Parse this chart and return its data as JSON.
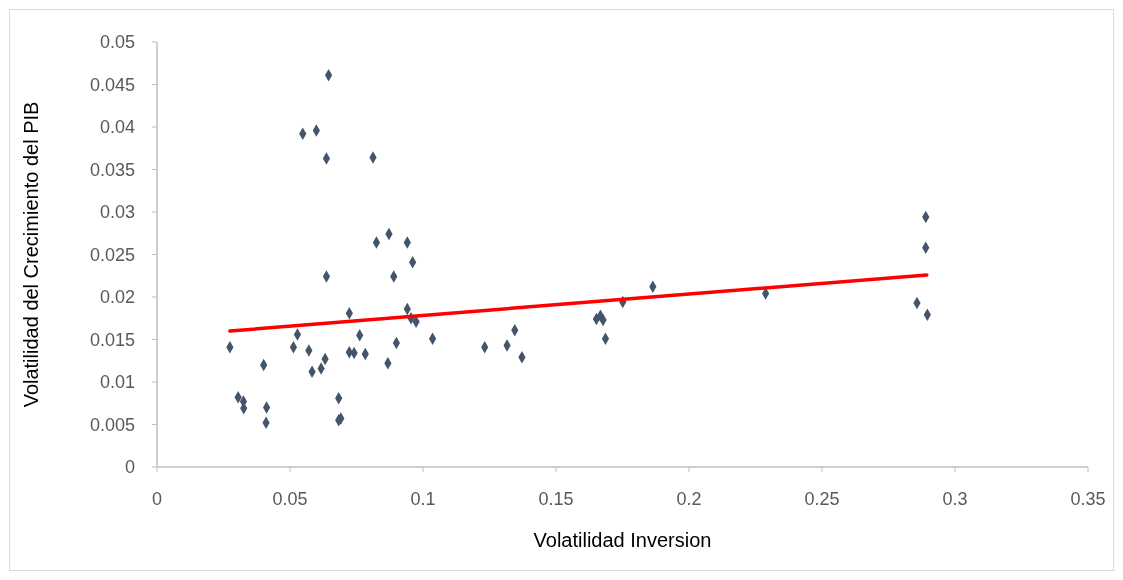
{
  "chart_data": {
    "type": "scatter",
    "xlabel": "Volatilidad Inversion",
    "ylabel": "Volatilidad del Crecimiento del PIB",
    "xlim": [
      0,
      0.35
    ],
    "xticks": [
      0,
      0.05,
      0.1,
      0.15,
      0.2,
      0.25,
      0.3,
      0.35
    ],
    "ylim": [
      0,
      0.05
    ],
    "yticks": [
      0,
      0.005,
      0.01,
      0.015,
      0.02,
      0.025,
      0.03,
      0.035,
      0.04,
      0.045,
      0.05
    ],
    "grid": false,
    "series": [
      {
        "marker": "diamond",
        "color": "#44546a",
        "x": [
          0.0645,
          0.0548,
          0.0599,
          0.0637,
          0.0812,
          0.0872,
          0.0825,
          0.0941,
          0.0961,
          0.0637,
          0.089,
          0.0723,
          0.0941,
          0.0955,
          0.0974,
          0.0528,
          0.0762,
          0.1036,
          0.0274,
          0.0513,
          0.0571,
          0.09,
          0.0723,
          0.0741,
          0.0783,
          0.0632,
          0.0401,
          0.0868,
          0.0617,
          0.0583,
          0.0305,
          0.0325,
          0.0326,
          0.0412,
          0.041,
          0.0683,
          0.0683,
          0.0691,
          0.1232,
          0.1316,
          0.1345,
          0.1372,
          0.1652,
          0.1667,
          0.1677,
          0.1686,
          0.1751,
          0.1864,
          0.2288,
          0.2857,
          0.2896,
          0.289,
          0.289
        ],
        "values": [
          0.0461,
          0.0392,
          0.0396,
          0.0363,
          0.0364,
          0.0274,
          0.0264,
          0.0264,
          0.0241,
          0.0224,
          0.0224,
          0.0181,
          0.0186,
          0.0175,
          0.0171,
          0.0156,
          0.0155,
          0.0151,
          0.0141,
          0.0141,
          0.0137,
          0.0146,
          0.0135,
          0.0134,
          0.0133,
          0.0127,
          0.012,
          0.0122,
          0.0116,
          0.0112,
          0.0082,
          0.0077,
          0.0069,
          0.007,
          0.0052,
          0.0081,
          0.0055,
          0.0057,
          0.0141,
          0.0143,
          0.0161,
          0.0129,
          0.0174,
          0.0178,
          0.0173,
          0.0151,
          0.0194,
          0.0212,
          0.0204,
          0.0193,
          0.0179,
          0.0294,
          0.0258
        ]
      },
      {
        "type": "line",
        "marker": "none",
        "line_style": "solid",
        "color": "#ff0000",
        "x": [
          0.0274,
          0.2894
        ],
        "values": [
          0.016,
          0.0226
        ]
      }
    ]
  }
}
